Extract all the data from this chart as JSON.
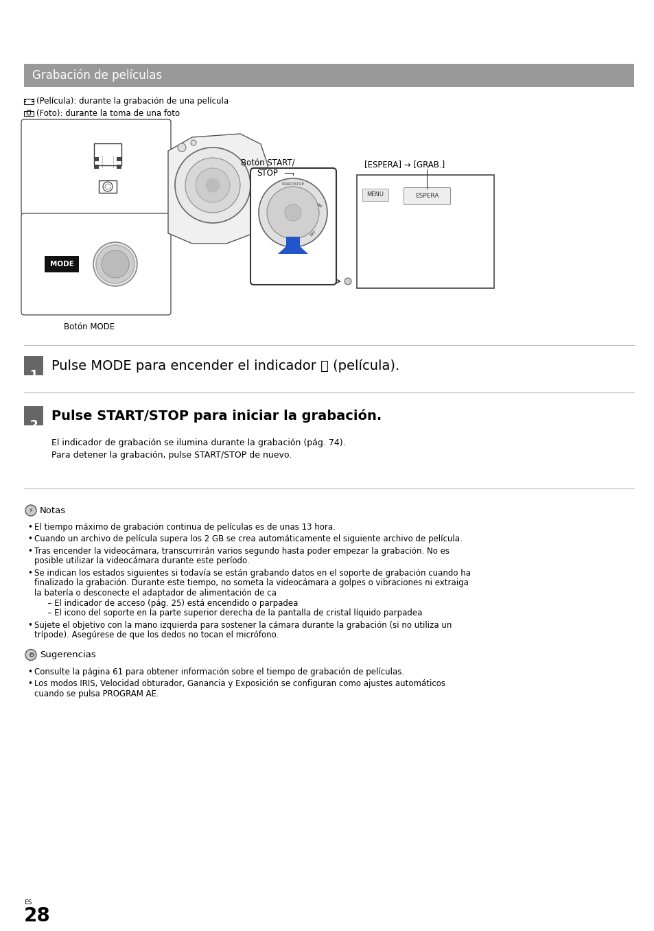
{
  "page_bg": "#ffffff",
  "header_bg": "#999999",
  "header_text": "Grabación de películas",
  "header_text_color": "#ffffff",
  "header_font_size": 12,
  "body_font_size": 8.5,
  "small_font_size": 7.0,
  "step_font_size": 14,
  "step_body_font_size": 9,
  "step_num_bg": "#666666",
  "step_num_color": "#ffffff",
  "text_color": "#000000",
  "page_num": "28",
  "page_lang": "ES",
  "espera_grab": "[ESPERA] → [GRAB.]",
  "boton_mode": "Botón MODE",
  "boton_start_stop_1": "Botón START/",
  "boton_start_stop_2": "STOP",
  "step1_text": "Pulse MODE para encender el indicador ⌗ (película).",
  "step2_title": "Pulse START/STOP para iniciar la grabación.",
  "step2_body1": "El indicador de grabación se ilumina durante la grabación (pág. 74).",
  "step2_body2": "Para detener la grabación, pulse START/STOP de nuevo.",
  "notes_title": "Notas",
  "notes": [
    "El tiempo máximo de grabación continua de películas es de unas 13 hora.",
    "Cuando un archivo de película supera los 2 GB se crea automáticamente el siguiente archivo de película.",
    "Tras encender la videocámara, transcurrirán varios segundo hasta poder empezar la grabación. No es\nposible utilizar la videocámara durante este período.",
    "Se indican los estados siguientes si todavía se están grabando datos en el soporte de grabación cuando ha\nfinalizado la grabación. Durante este tiempo, no someta la videocámara a golpes o vibraciones ni extraiga\nla batería o desconecte el adaptador de alimentación de ca\n  – El indicador de acceso (pág. 25) está encendido o parpadea\n  – El icono del soporte en la parte superior derecha de la pantalla de cristal líquido parpadea",
    "Sujete el objetivo con la mano izquierda para sostener la cámara durante la grabación (si no utiliza un\ntrípode). Asegúrese de que los dedos no tocan el micrófono."
  ],
  "tips_title": "Sugerencias",
  "tips": [
    "Consulte la página 61 para obtener información sobre el tiempo de grabación de películas.",
    "Los modos IRIS, Velocidad obturador, Ganancia y Exposición se configuran como ajustes automáticos\ncuando se pulsa PROGRAM AE."
  ]
}
